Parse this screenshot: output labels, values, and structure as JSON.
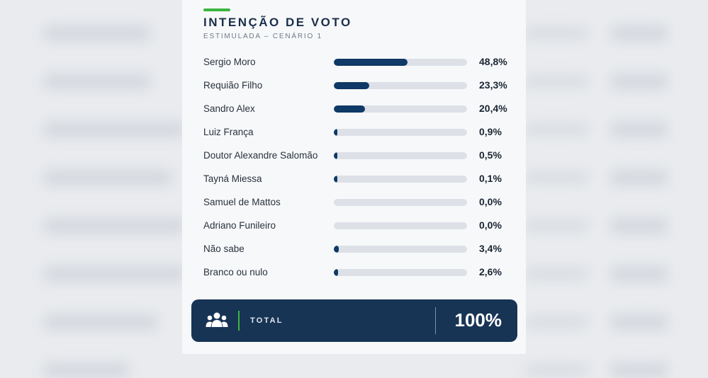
{
  "chart_data": {
    "type": "bar",
    "title": "INTENÇÃO DE VOTO",
    "subtitle": "ESTIMULADA – CENÁRIO 1",
    "categories": [
      "Sergio Moro",
      "Requião Filho",
      "Sandro Alex",
      "Luiz França",
      "Doutor Alexandre Salomão",
      "Tayná Miessa",
      "Samuel de Mattos",
      "Adriano Funileiro",
      "Não sabe",
      "Branco ou nulo"
    ],
    "values": [
      48.8,
      23.3,
      20.4,
      0.9,
      0.5,
      0.1,
      0.0,
      0.0,
      3.4,
      2.6
    ],
    "value_labels": [
      "48,8%",
      "23,3%",
      "20,4%",
      "0,9%",
      "0,5%",
      "0,1%",
      "0,0%",
      "0,0%",
      "3,4%",
      "2,6%"
    ],
    "xlim": [
      0,
      88
    ],
    "bar_color": "#0f3966",
    "track_color": "#dde1e7"
  },
  "summary": {
    "label": "TOTAL",
    "value": "100%",
    "icon": "group-icon"
  },
  "colors": {
    "accent": "#3db53f",
    "panel": "#173455"
  }
}
